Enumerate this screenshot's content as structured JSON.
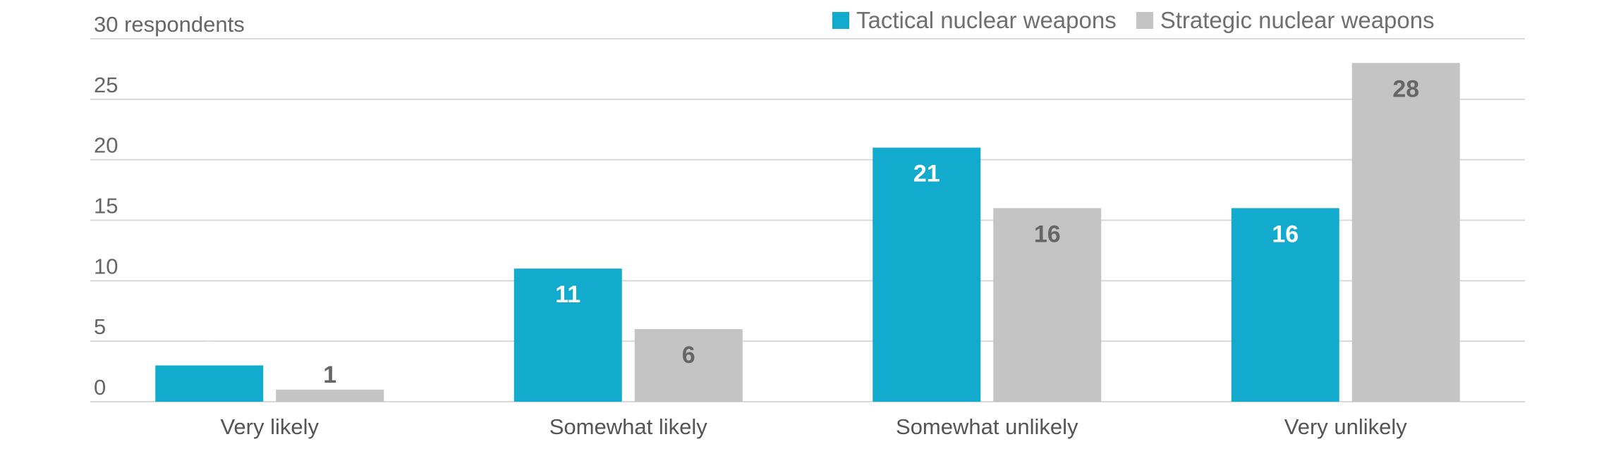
{
  "chart_data": {
    "type": "bar",
    "categories": [
      "Very likely",
      "Somewhat likely",
      "Somewhat unlikely",
      "Very unlikely"
    ],
    "series": [
      {
        "name": "Tactical nuclear weapons",
        "values": [
          3,
          11,
          21,
          16
        ],
        "color": "#12abcd",
        "label_color": "#ffffff"
      },
      {
        "name": "Strategic nuclear weapons",
        "values": [
          1,
          6,
          16,
          28
        ],
        "color": "#c4c4c4",
        "label_color": "#666666"
      }
    ],
    "yticks": [
      "0",
      "5",
      "10",
      "15",
      "20",
      "25",
      "30 respondents"
    ],
    "ylim": [
      0,
      30
    ],
    "grid": true,
    "legend_position": "top-right",
    "colors": {
      "axis_text": "#666666",
      "grid": "#d9d9d9",
      "category_text": "#555555"
    }
  }
}
